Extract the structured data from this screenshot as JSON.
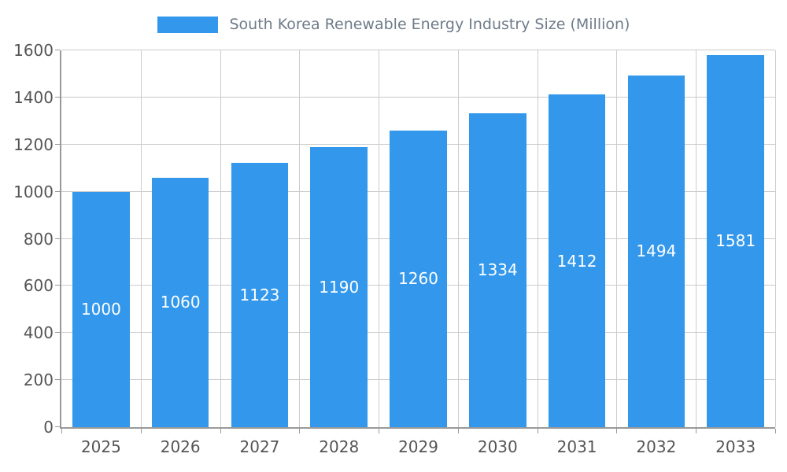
{
  "chart_data": {
    "type": "bar",
    "title": "South Korea Renewable Energy Industry Size (Million)",
    "categories": [
      "2025",
      "2026",
      "2027",
      "2028",
      "2029",
      "2030",
      "2031",
      "2032",
      "2033"
    ],
    "values": [
      1000,
      1060,
      1123,
      1190,
      1260,
      1334,
      1412,
      1494,
      1581
    ],
    "xlabel": "",
    "ylabel": "",
    "ylim": [
      0,
      1600
    ],
    "ytick_step": 200,
    "yticks": [
      0,
      200,
      400,
      600,
      800,
      1000,
      1200,
      1400,
      1600
    ],
    "grid": true,
    "legend_position": "top-center",
    "bar_labels_inside": true,
    "colors": {
      "bar": "#3398EC",
      "bar_label": "#FFFFFF",
      "title": "#6E7B8A",
      "tick_label": "#555555",
      "gridline": "#CCCCCC",
      "axis_line": "#999999",
      "background": "#FFFFFF"
    }
  }
}
